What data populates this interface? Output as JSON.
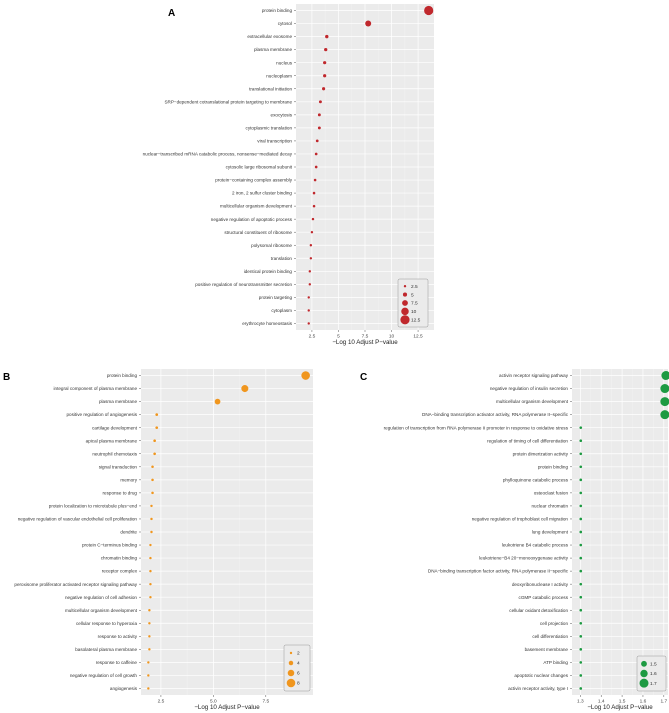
{
  "chart_data": [
    {
      "type": "scatter",
      "panel_label": "A",
      "xlabel": "−Log 10 Adjust P−value",
      "ylabel": "",
      "xlim": [
        1.0,
        14.0
      ],
      "xticks": [
        2.5,
        5,
        7.5,
        10,
        12.5
      ],
      "xtick_labels": [
        "2.5",
        "5",
        "7.5",
        "10",
        "12.5"
      ],
      "color": "#c0282d",
      "size_range": [
        2.5,
        12.5
      ],
      "legend": {
        "position": "bottom-right",
        "entries": [
          "2.5",
          "5",
          "7.5",
          "10",
          "12.5"
        ],
        "values": [
          2.5,
          5,
          7.5,
          10,
          12.5
        ]
      },
      "categories": [
        "protein binding",
        "cytosol",
        "extracellular exosome",
        "plasma membrane",
        "nucleus",
        "nucleoplasm",
        "translational initiation",
        "SRP−dependent cotranslational protein targeting to membrane",
        "exocytosis",
        "cytoplasmic translation",
        "viral transcription",
        "nuclear−transcribed mRNA catabolic process, nonsense−mediated decay",
        "cytosolic large ribosomal subunit",
        "protein−containing complex assembly",
        "2 iron, 2 sulfur cluster binding",
        "multicellular organism development",
        "negative regulation of apoptotic process",
        "structural constituent of ribosome",
        "polysomal ribosome",
        "translation",
        "identical protein binding",
        "positive regulation of neurotransmitter secretion",
        "protein targeting",
        "cytoplasm",
        "erythrocyte homeostasis"
      ],
      "x": [
        13.5,
        7.8,
        3.9,
        3.8,
        3.7,
        3.7,
        3.6,
        3.3,
        3.2,
        3.2,
        3.0,
        2.9,
        2.9,
        2.8,
        2.7,
        2.7,
        2.6,
        2.5,
        2.4,
        2.4,
        2.3,
        2.3,
        2.2,
        2.2,
        2.2
      ]
    },
    {
      "type": "scatter",
      "panel_label": "B",
      "xlabel": "−Log 10 Adjust P−value",
      "ylabel": "",
      "xlim": [
        1.55,
        9.75
      ],
      "xticks": [
        2.5,
        5.0,
        7.5
      ],
      "xtick_labels": [
        "2.5",
        "5.0",
        "7.5"
      ],
      "color": "#f0961e",
      "size_range": [
        2,
        8
      ],
      "legend": {
        "position": "bottom-right",
        "entries": [
          "2",
          "4",
          "6",
          "8"
        ],
        "values": [
          2,
          4,
          6,
          8
        ]
      },
      "categories": [
        "protein binding",
        "integral component of plasma membrane",
        "plasma membrane",
        "positive regulation of angiogenesis",
        "cartilage development",
        "apical plasma membrane",
        "neutrophil chemotaxis",
        "signal transduction",
        "memory",
        "response to drug",
        "protein localization to microtubule plus−end",
        "negative regulation of vascular endothelial cell proliferation",
        "dendrite",
        "protein C−terminus binding",
        "chromatin binding",
        "receptor complex",
        "peroxisome proliferator activated receptor signaling pathway",
        "negative regulation of cell adhesion",
        "multicellular organism development",
        "cellular response to hyperoxia",
        "response to activity",
        "basolateral plasma membrane",
        "response to caffeine",
        "negative regulation of cell growth",
        "angiogenesis"
      ],
      "x": [
        9.4,
        6.5,
        5.2,
        2.3,
        2.3,
        2.2,
        2.2,
        2.1,
        2.1,
        2.1,
        2.05,
        2.05,
        2.05,
        2.0,
        2.0,
        2.0,
        2.0,
        2.0,
        1.95,
        1.95,
        1.95,
        1.95,
        1.9,
        1.9,
        1.9
      ]
    },
    {
      "type": "scatter",
      "panel_label": "C",
      "xlabel": "−Log 10 Adjust P−value",
      "ylabel": "",
      "xlim": [
        1.26,
        1.72
      ],
      "xticks": [
        1.3,
        1.4,
        1.5,
        1.6,
        1.7
      ],
      "xtick_labels": [
        "1.3",
        "1.4",
        "1.5",
        "1.6",
        "1.7"
      ],
      "color": "#1d9a42",
      "size_range": [
        1.3,
        1.7
      ],
      "legend": {
        "position": "bottom-right",
        "entries": [
          "1.5",
          "1.6",
          "1.7"
        ],
        "values": [
          1.5,
          1.6,
          1.7
        ]
      },
      "categories": [
        "activin receptor signaling pathway",
        "negative regulation of insulin secretion",
        "multicellular organism development",
        "DNA−binding transcription activator activity, RNA polymerase II−specific",
        "regulation of transcription from RNA polymerase II promoter in response to oxidative stress",
        "regulation of timing of cell differentiation",
        "protein dimerization activity",
        "protein binding",
        "phylloquinone catabolic process",
        "osteoclast fusion",
        "nuclear chromatin",
        "negative regulation of trophoblast cell migration",
        "lung development",
        "leukotriene B4 catabolic process",
        "leukotriene−B4 20−monooxygenase activity",
        "DNA−binding transcription factor activity, RNA polymerase II−specific",
        "deoxyribonuclease I activity",
        "cGMP catabolic process",
        "cellular oxidant detoxification",
        "cell projection",
        "cell differentiation",
        "basement membrane",
        "ATP binding",
        "apoptotic nuclear changes",
        "activin receptor activity, type I"
      ],
      "x": [
        1.71,
        1.705,
        1.705,
        1.705,
        1.302,
        1.302,
        1.302,
        1.302,
        1.302,
        1.302,
        1.302,
        1.302,
        1.302,
        1.302,
        1.302,
        1.302,
        1.302,
        1.302,
        1.302,
        1.302,
        1.302,
        1.302,
        1.302,
        1.302,
        1.302
      ]
    }
  ]
}
